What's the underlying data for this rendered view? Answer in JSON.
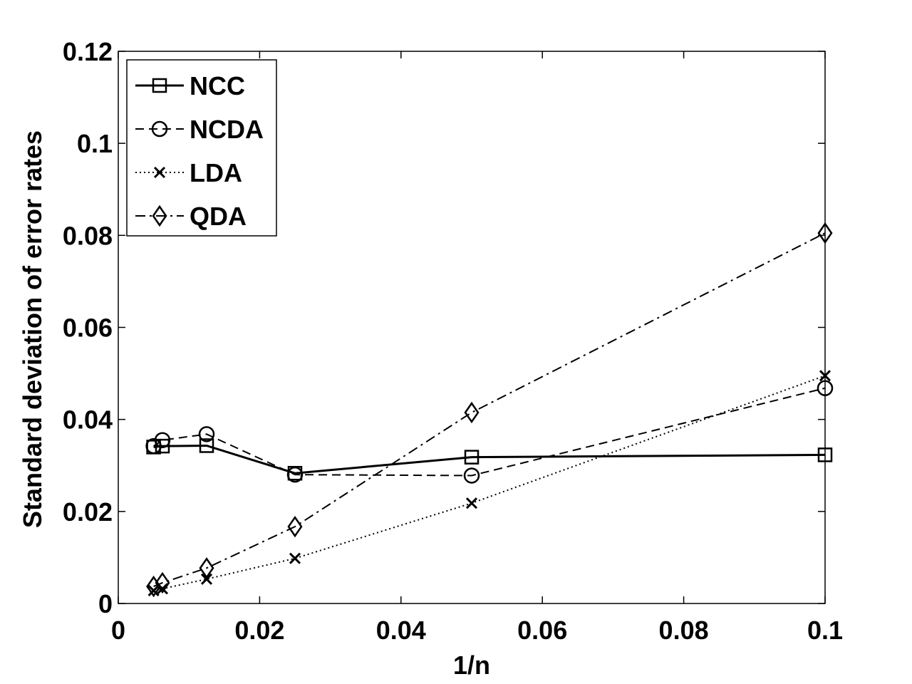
{
  "chart_data": {
    "type": "line",
    "title": "",
    "xlabel": "1/n",
    "ylabel": "Standard deviation of  error rates",
    "xlim": [
      0,
      0.1
    ],
    "ylim": [
      0,
      0.12
    ],
    "xticks": [
      "0",
      "0.02",
      "0.04",
      "0.06",
      "0.08",
      "0.1"
    ],
    "yticks": [
      "0",
      "0.02",
      "0.04",
      "0.06",
      "0.08",
      "0.1",
      "0.12"
    ],
    "grid": false,
    "legend_position": "top-left",
    "x": [
      0.005,
      0.00625,
      0.0125,
      0.025,
      0.05,
      0.1
    ],
    "series": [
      {
        "name": "NCC",
        "line": "solid",
        "marker": "square",
        "values": [
          0.034,
          0.0342,
          0.0343,
          0.0283,
          0.0318,
          0.0323
        ]
      },
      {
        "name": "NCDA",
        "line": "dashed",
        "marker": "circle",
        "values": [
          0.0342,
          0.0355,
          0.0368,
          0.028,
          0.0278,
          0.0468
        ]
      },
      {
        "name": "LDA",
        "line": "dotted",
        "marker": "x",
        "values": [
          0.0028,
          0.0032,
          0.0053,
          0.0098,
          0.0218,
          0.0495
        ]
      },
      {
        "name": "QDA",
        "line": "dashdot",
        "marker": "diamond",
        "values": [
          0.0037,
          0.0045,
          0.0077,
          0.0167,
          0.0415,
          0.0805
        ]
      }
    ]
  }
}
